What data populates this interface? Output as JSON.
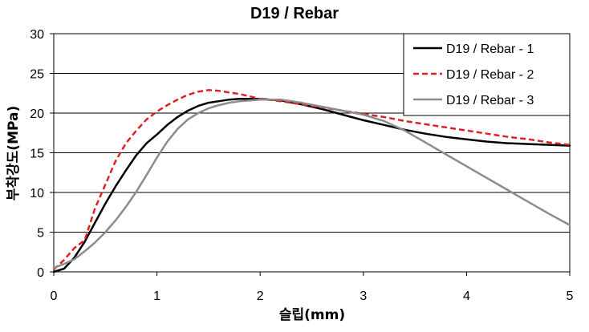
{
  "chart_data": {
    "type": "line",
    "title": "D19 / Rebar",
    "xlabel": "슬립(mm)",
    "ylabel": "부착강도(MPa)",
    "xlim": [
      0,
      5
    ],
    "ylim": [
      0,
      30
    ],
    "xticks": [
      "0",
      "1",
      "2",
      "3",
      "4",
      "5"
    ],
    "yticks": [
      "0",
      "5",
      "10",
      "15",
      "20",
      "25",
      "30"
    ],
    "grid": "horizontal",
    "legend_position": "top-right",
    "series": [
      {
        "name": "D19 / Rebar - 1",
        "color": "#000000",
        "dash": "solid",
        "points": [
          [
            0,
            0
          ],
          [
            0.1,
            0.4
          ],
          [
            0.2,
            1.8
          ],
          [
            0.3,
            3.8
          ],
          [
            0.4,
            6.2
          ],
          [
            0.5,
            8.6
          ],
          [
            0.6,
            10.8
          ],
          [
            0.7,
            12.8
          ],
          [
            0.8,
            14.7
          ],
          [
            0.9,
            16.2
          ],
          [
            1.0,
            17.3
          ],
          [
            1.1,
            18.5
          ],
          [
            1.2,
            19.5
          ],
          [
            1.3,
            20.3
          ],
          [
            1.4,
            20.9
          ],
          [
            1.5,
            21.3
          ],
          [
            1.6,
            21.5
          ],
          [
            1.7,
            21.7
          ],
          [
            1.8,
            21.8
          ],
          [
            1.9,
            21.8
          ],
          [
            2.0,
            21.8
          ],
          [
            2.2,
            21.6
          ],
          [
            2.4,
            21.1
          ],
          [
            2.6,
            20.5
          ],
          [
            2.8,
            19.8
          ],
          [
            3.0,
            19.1
          ],
          [
            3.2,
            18.5
          ],
          [
            3.4,
            17.9
          ],
          [
            3.6,
            17.4
          ],
          [
            3.8,
            17.0
          ],
          [
            4.0,
            16.7
          ],
          [
            4.2,
            16.4
          ],
          [
            4.4,
            16.2
          ],
          [
            4.6,
            16.1
          ],
          [
            4.8,
            16.0
          ],
          [
            5.0,
            15.9
          ]
        ]
      },
      {
        "name": "D19 / Rebar - 2",
        "color": "#e02020",
        "dash": "dashed",
        "points": [
          [
            0,
            0.3
          ],
          [
            0.1,
            1.5
          ],
          [
            0.2,
            3.0
          ],
          [
            0.3,
            4.0
          ],
          [
            0.4,
            8.0
          ],
          [
            0.5,
            11.0
          ],
          [
            0.6,
            14.0
          ],
          [
            0.7,
            16.2
          ],
          [
            0.8,
            17.8
          ],
          [
            0.9,
            19.2
          ],
          [
            1.0,
            20.2
          ],
          [
            1.1,
            21.0
          ],
          [
            1.2,
            21.7
          ],
          [
            1.3,
            22.3
          ],
          [
            1.4,
            22.7
          ],
          [
            1.5,
            22.9
          ],
          [
            1.6,
            22.8
          ],
          [
            1.7,
            22.6
          ],
          [
            1.8,
            22.4
          ],
          [
            1.9,
            22.1
          ],
          [
            2.0,
            21.8
          ],
          [
            2.2,
            21.5
          ],
          [
            2.4,
            21.1
          ],
          [
            2.6,
            20.7
          ],
          [
            2.8,
            20.3
          ],
          [
            3.0,
            19.9
          ],
          [
            3.2,
            19.5
          ],
          [
            3.4,
            19.0
          ],
          [
            3.6,
            18.6
          ],
          [
            3.8,
            18.2
          ],
          [
            4.0,
            17.8
          ],
          [
            4.2,
            17.4
          ],
          [
            4.4,
            17.0
          ],
          [
            4.6,
            16.7
          ],
          [
            4.8,
            16.3
          ],
          [
            5.0,
            16.0
          ]
        ]
      },
      {
        "name": "D19 / Rebar - 3",
        "color": "#8c8c8c",
        "dash": "solid",
        "points": [
          [
            0,
            0.5
          ],
          [
            0.1,
            1.0
          ],
          [
            0.2,
            1.6
          ],
          [
            0.3,
            2.6
          ],
          [
            0.4,
            3.7
          ],
          [
            0.5,
            5.0
          ],
          [
            0.6,
            6.5
          ],
          [
            0.7,
            8.2
          ],
          [
            0.8,
            10.1
          ],
          [
            0.9,
            12.2
          ],
          [
            1.0,
            14.4
          ],
          [
            1.1,
            16.4
          ],
          [
            1.2,
            18.0
          ],
          [
            1.3,
            19.2
          ],
          [
            1.4,
            20.0
          ],
          [
            1.5,
            20.6
          ],
          [
            1.6,
            21.0
          ],
          [
            1.7,
            21.3
          ],
          [
            1.8,
            21.5
          ],
          [
            1.9,
            21.6
          ],
          [
            2.0,
            21.7
          ],
          [
            2.2,
            21.7
          ],
          [
            2.4,
            21.3
          ],
          [
            2.6,
            20.8
          ],
          [
            2.8,
            20.3
          ],
          [
            3.0,
            19.8
          ],
          [
            3.2,
            19.0
          ],
          [
            3.4,
            17.8
          ],
          [
            3.6,
            16.3
          ],
          [
            3.8,
            14.8
          ],
          [
            4.0,
            13.3
          ],
          [
            4.2,
            11.8
          ],
          [
            4.4,
            10.3
          ],
          [
            4.6,
            8.8
          ],
          [
            4.8,
            7.3
          ],
          [
            5.0,
            5.9
          ]
        ]
      }
    ]
  }
}
